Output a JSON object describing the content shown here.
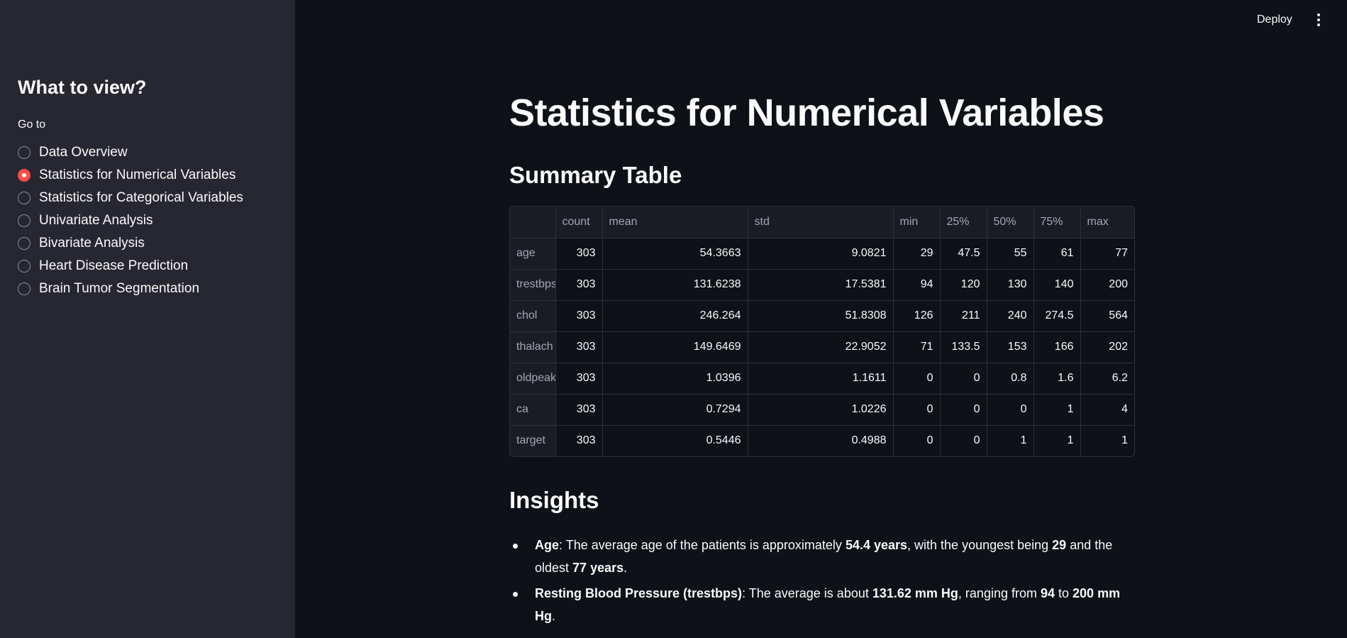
{
  "header": {
    "deploy_label": "Deploy",
    "menu_icon": "kebab-vertical-icon"
  },
  "sidebar": {
    "heading": "What to view?",
    "goto_label": "Go to",
    "items": [
      {
        "label": "Data Overview",
        "selected": false
      },
      {
        "label": "Statistics for Numerical Variables",
        "selected": true
      },
      {
        "label": "Statistics for Categorical Variables",
        "selected": false
      },
      {
        "label": "Univariate Analysis",
        "selected": false
      },
      {
        "label": "Bivariate Analysis",
        "selected": false
      },
      {
        "label": "Heart Disease Prediction",
        "selected": false
      },
      {
        "label": "Brain Tumor Segmentation",
        "selected": false
      }
    ],
    "accent_color": "#ff4b4b"
  },
  "main": {
    "title": "Statistics for Numerical Variables",
    "summary_title": "Summary Table",
    "insights_title": "Insights"
  },
  "table": {
    "columns": [
      "",
      "count",
      "mean",
      "std",
      "min",
      "25%",
      "50%",
      "75%",
      "max"
    ],
    "rows": [
      [
        "age",
        "303",
        "54.3663",
        "9.0821",
        "29",
        "47.5",
        "55",
        "61",
        "77"
      ],
      [
        "trestbps",
        "303",
        "131.6238",
        "17.5381",
        "94",
        "120",
        "130",
        "140",
        "200"
      ],
      [
        "chol",
        "303",
        "246.264",
        "51.8308",
        "126",
        "211",
        "240",
        "274.5",
        "564"
      ],
      [
        "thalach",
        "303",
        "149.6469",
        "22.9052",
        "71",
        "133.5",
        "153",
        "166",
        "202"
      ],
      [
        "oldpeak",
        "303",
        "1.0396",
        "1.1611",
        "0",
        "0",
        "0.8",
        "1.6",
        "6.2"
      ],
      [
        "ca",
        "303",
        "0.7294",
        "1.0226",
        "0",
        "0",
        "0",
        "1",
        "4"
      ],
      [
        "target",
        "303",
        "0.5446",
        "0.4988",
        "0",
        "0",
        "1",
        "1",
        "1"
      ]
    ]
  },
  "insights": [
    {
      "parts": [
        {
          "text": "Age",
          "bold": true
        },
        {
          "text": ": The average age of the patients is approximately ",
          "bold": false
        },
        {
          "text": "54.4 years",
          "bold": true
        },
        {
          "text": ", with the youngest being ",
          "bold": false
        },
        {
          "text": "29",
          "bold": true
        },
        {
          "text": " and the oldest ",
          "bold": false
        },
        {
          "text": "77 years",
          "bold": true
        },
        {
          "text": ".",
          "bold": false
        }
      ]
    },
    {
      "parts": [
        {
          "text": "Resting Blood Pressure (trestbps)",
          "bold": true
        },
        {
          "text": ": The average is about ",
          "bold": false
        },
        {
          "text": "131.62 mm Hg",
          "bold": true
        },
        {
          "text": ", ranging from ",
          "bold": false
        },
        {
          "text": "94",
          "bold": true
        },
        {
          "text": " to ",
          "bold": false
        },
        {
          "text": "200 mm Hg",
          "bold": true
        },
        {
          "text": ".",
          "bold": false
        }
      ]
    }
  ]
}
